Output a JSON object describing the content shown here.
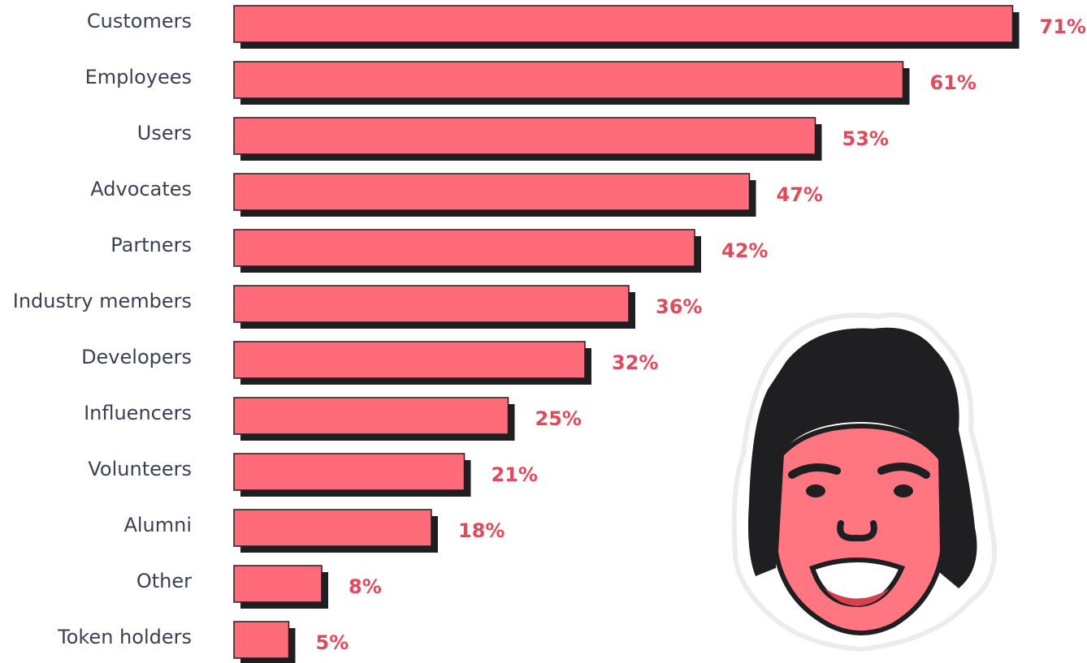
{
  "chart_data": {
    "type": "bar",
    "orientation": "horizontal",
    "categories": [
      "Customers",
      "Employees",
      "Users",
      "Advocates",
      "Partners",
      "Industry members",
      "Developers",
      "Influencers",
      "Volunteers",
      "Alumni",
      "Other",
      "Token holders"
    ],
    "values": [
      71,
      61,
      53,
      47,
      42,
      36,
      32,
      25,
      21,
      18,
      8,
      5
    ],
    "value_labels": [
      "71%",
      "61%",
      "53%",
      "47%",
      "42%",
      "36%",
      "32%",
      "25%",
      "21%",
      "18%",
      "8%",
      "5%"
    ],
    "color": "#ff6b78"
  }
}
